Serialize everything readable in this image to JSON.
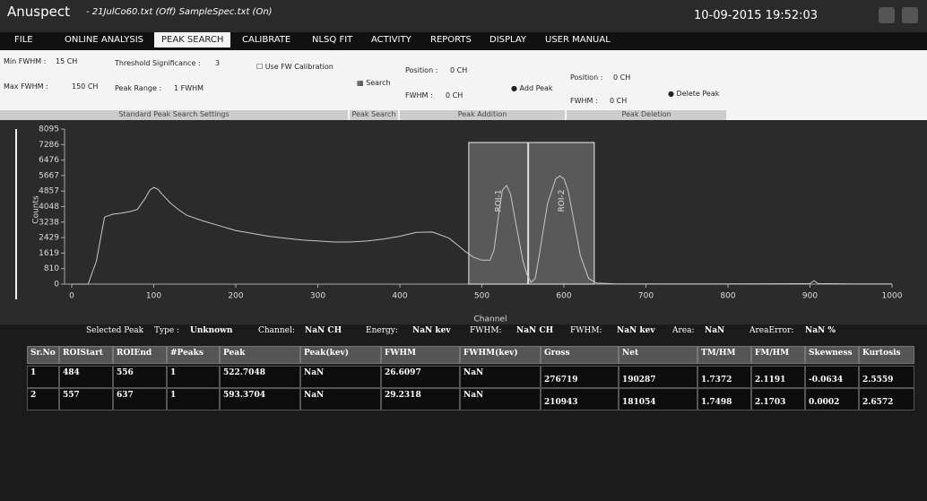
{
  "title_bar": {
    "app": "Anuspect",
    "files": "- 21JulCo60.txt (Off)  SampleSpec.txt (On)",
    "datetime": "10-09-2015 19:52:03"
  },
  "menu": [
    "FILE",
    "ONLINE ANALYSIS",
    "PEAK SEARCH",
    "CALIBRATE",
    "NLSQ FIT",
    "ACTIVITY",
    "REPORTS",
    "DISPLAY",
    "USER MANUAL"
  ],
  "ribbon": {
    "standard": {
      "title": "Standard Peak Search Settings",
      "min_fwhm_label": "Min FWHM :",
      "min_fwhm": "15 CH",
      "threshold_label": "Threshold Significance :",
      "threshold": "3",
      "use_fw": "Use FW Calibration",
      "max_fwhm_label": "Max FWHM :",
      "max_fwhm": "150 CH",
      "peak_range_label": "Peak Range :",
      "peak_range": "1 FWHM"
    },
    "search": {
      "title": "Peak Search",
      "button": "Search"
    },
    "addition": {
      "title": "Peak Addition",
      "position_label": "Position :",
      "position": "0 CH",
      "fwhm_label": "FWHM :",
      "fwhm": "0 CH",
      "button": "Add Peak"
    },
    "deletion": {
      "title": "Peak Deletion",
      "position_label": "Position :",
      "position": "0 CH",
      "fwhm_label": "FWHM :",
      "fwhm": "0 CH",
      "button": "Delete Peak"
    }
  },
  "chart_data": {
    "type": "line",
    "x_label": "Channel",
    "y_label": "Counts",
    "color": "#c8c8c8",
    "x": [
      0,
      20,
      30,
      40,
      50,
      60,
      70,
      80,
      90,
      95,
      100,
      105,
      110,
      120,
      130,
      140,
      160,
      180,
      200,
      220,
      240,
      260,
      280,
      300,
      320,
      340,
      360,
      380,
      400,
      420,
      440,
      460,
      480,
      490,
      500,
      510,
      515,
      520,
      525,
      530,
      535,
      540,
      550,
      555,
      560,
      565,
      570,
      580,
      590,
      595,
      600,
      605,
      610,
      620,
      630,
      640,
      660,
      700,
      800,
      900,
      905,
      910,
      950,
      1000
    ],
    "values": [
      0,
      0,
      1200,
      3500,
      3650,
      3700,
      3780,
      3900,
      4500,
      4900,
      5050,
      4950,
      4700,
      4250,
      3900,
      3600,
      3300,
      3050,
      2800,
      2650,
      2500,
      2400,
      2300,
      2250,
      2200,
      2200,
      2250,
      2350,
      2500,
      2700,
      2720,
      2400,
      1700,
      1400,
      1250,
      1250,
      1800,
      3500,
      4900,
      5150,
      4700,
      3500,
      1200,
      500,
      100,
      300,
      1500,
      4200,
      5500,
      5650,
      5500,
      4900,
      3800,
      1500,
      300,
      50,
      20,
      10,
      10,
      30,
      180,
      30,
      10,
      10
    ],
    "xlim": [
      0,
      1000
    ],
    "xticks": [
      0,
      100,
      200,
      300,
      400,
      500,
      600,
      700,
      800,
      900,
      1000
    ],
    "ylim": [
      0,
      8095
    ],
    "yticks": [
      0,
      810,
      1619,
      2429,
      3238,
      4048,
      4857,
      5667,
      6476,
      7286,
      8095
    ],
    "rois": [
      {
        "label": "ROI-1",
        "start": 484,
        "end": 556
      },
      {
        "label": "ROI-2",
        "start": 557,
        "end": 637
      }
    ]
  },
  "status": [
    [
      "Selected Peak",
      ""
    ],
    [
      "Type :",
      "Unknown"
    ],
    [
      "Channel:",
      "NaN CH"
    ],
    [
      "Energy:",
      "NaN kev"
    ],
    [
      "FWHM:",
      "NaN CH"
    ],
    [
      "FWHM:",
      "NaN kev"
    ],
    [
      "Area:",
      "NaN"
    ],
    [
      "AreaError:",
      "NaN %"
    ]
  ],
  "table": {
    "columns": [
      "Sr.No",
      "ROIStart",
      "ROIEnd",
      "#Peaks",
      "Peak",
      "Peak(kev)",
      "FWHM",
      "FWHM(kev)",
      "Gross",
      "Net",
      "TM/HM",
      "FM/HM",
      "Skewness",
      "Kurtosis"
    ],
    "rows": [
      [
        "1",
        "484",
        "556",
        "1",
        "522.7048",
        "NaN",
        "26.6097",
        "NaN",
        "276719",
        "190287",
        "1.7372",
        "2.1191",
        "-0.0634",
        "2.5559"
      ],
      [
        "2",
        "557",
        "637",
        "1",
        "593.3704",
        "NaN",
        "29.2318",
        "NaN",
        "210943",
        "181054",
        "1.7498",
        "2.1703",
        "0.0002",
        "2.6572"
      ]
    ]
  }
}
